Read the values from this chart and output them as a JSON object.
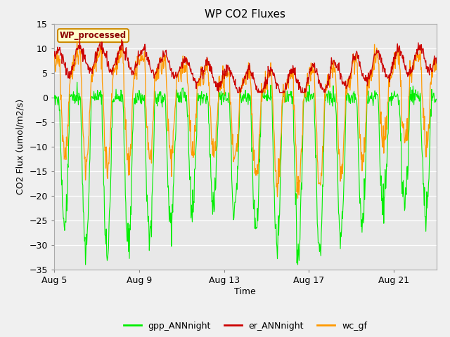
{
  "title": "WP CO2 Fluxes",
  "xlabel": "Time",
  "ylabel": "CO2 Flux (umol/m2/s)",
  "ylim": [
    -35,
    15
  ],
  "yticks": [
    -35,
    -30,
    -25,
    -20,
    -15,
    -10,
    -5,
    0,
    5,
    10,
    15
  ],
  "fig_bg_color": "#f0f0f0",
  "plot_bg_color": "#e8e8e8",
  "inset_label": "WP_processed",
  "inset_label_color": "#8b0000",
  "inset_bg_color": "#ffffcc",
  "inset_border_color": "#cc8800",
  "legend_entries": [
    "gpp_ANNnight",
    "er_ANNnight",
    "wc_gf"
  ],
  "line_colors": [
    "#00ee00",
    "#cc0000",
    "#ff9900"
  ],
  "x_tick_labels": [
    "Aug 5",
    "Aug 9",
    "Aug 13",
    "Aug 17",
    "Aug 21"
  ],
  "x_tick_positions": [
    0,
    4,
    8,
    12,
    16
  ],
  "n_days": 18,
  "n_points_per_day": 48,
  "title_fontsize": 11,
  "axis_fontsize": 9,
  "tick_fontsize": 9,
  "legend_fontsize": 9
}
